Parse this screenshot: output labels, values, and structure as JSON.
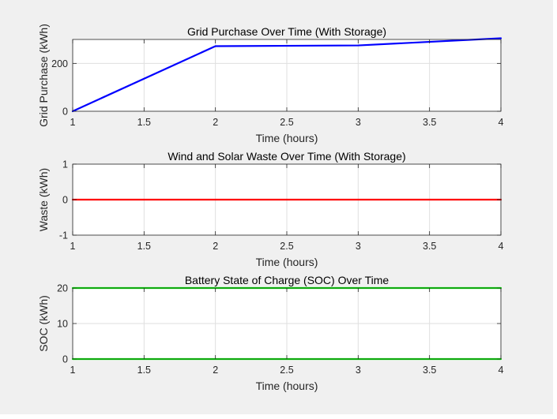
{
  "chart_data": [
    {
      "type": "line",
      "title": "Grid Purchase Over Time (With Storage)",
      "xlabel": "Time (hours)",
      "ylabel": "Grid Purchase (kWh)",
      "xlim": [
        1,
        4
      ],
      "ylim": [
        0,
        300
      ],
      "xticks": [
        1,
        1.5,
        2,
        2.5,
        3,
        3.5,
        4
      ],
      "yticks": [
        0,
        200
      ],
      "xtick_labels": [
        "1",
        "1.5",
        "2",
        "2.5",
        "3",
        "3.5",
        "4"
      ],
      "ytick_labels": [
        "0",
        "200"
      ],
      "grid": true,
      "series": [
        {
          "color": "#0000ff",
          "x": [
            1,
            2,
            3,
            4
          ],
          "y": [
            0,
            272,
            275,
            305
          ]
        }
      ]
    },
    {
      "type": "line",
      "title": "Wind and Solar Waste Over Time (With Storage)",
      "xlabel": "Time (hours)",
      "ylabel": "Waste (kWh)",
      "xlim": [
        1,
        4
      ],
      "ylim": [
        -1,
        1
      ],
      "xticks": [
        1,
        1.5,
        2,
        2.5,
        3,
        3.5,
        4
      ],
      "yticks": [
        -1,
        0,
        1
      ],
      "xtick_labels": [
        "1",
        "1.5",
        "2",
        "2.5",
        "3",
        "3.5",
        "4"
      ],
      "ytick_labels": [
        "-1",
        "0",
        "1"
      ],
      "grid": true,
      "series": [
        {
          "color": "#ff0000",
          "x": [
            1,
            2,
            3,
            4
          ],
          "y": [
            0,
            0,
            0,
            0
          ]
        }
      ]
    },
    {
      "type": "line",
      "title": "Battery State of Charge (SOC) Over Time",
      "xlabel": "Time (hours)",
      "ylabel": "SOC (kWh)",
      "xlim": [
        1,
        4
      ],
      "ylim": [
        0,
        20
      ],
      "xticks": [
        1,
        1.5,
        2,
        2.5,
        3,
        3.5,
        4
      ],
      "yticks": [
        0,
        10,
        20
      ],
      "xtick_labels": [
        "1",
        "1.5",
        "2",
        "2.5",
        "3",
        "3.5",
        "4"
      ],
      "ytick_labels": [
        "0",
        "10",
        "20"
      ],
      "grid": true,
      "series": [
        {
          "color": "#00ff00",
          "x": [
            1,
            2,
            3,
            4
          ],
          "y": [
            0,
            0,
            0,
            0
          ]
        },
        {
          "color": "#00ff00",
          "x": [
            1,
            2,
            3,
            4
          ],
          "y": [
            20,
            20,
            20,
            20
          ]
        }
      ]
    }
  ]
}
